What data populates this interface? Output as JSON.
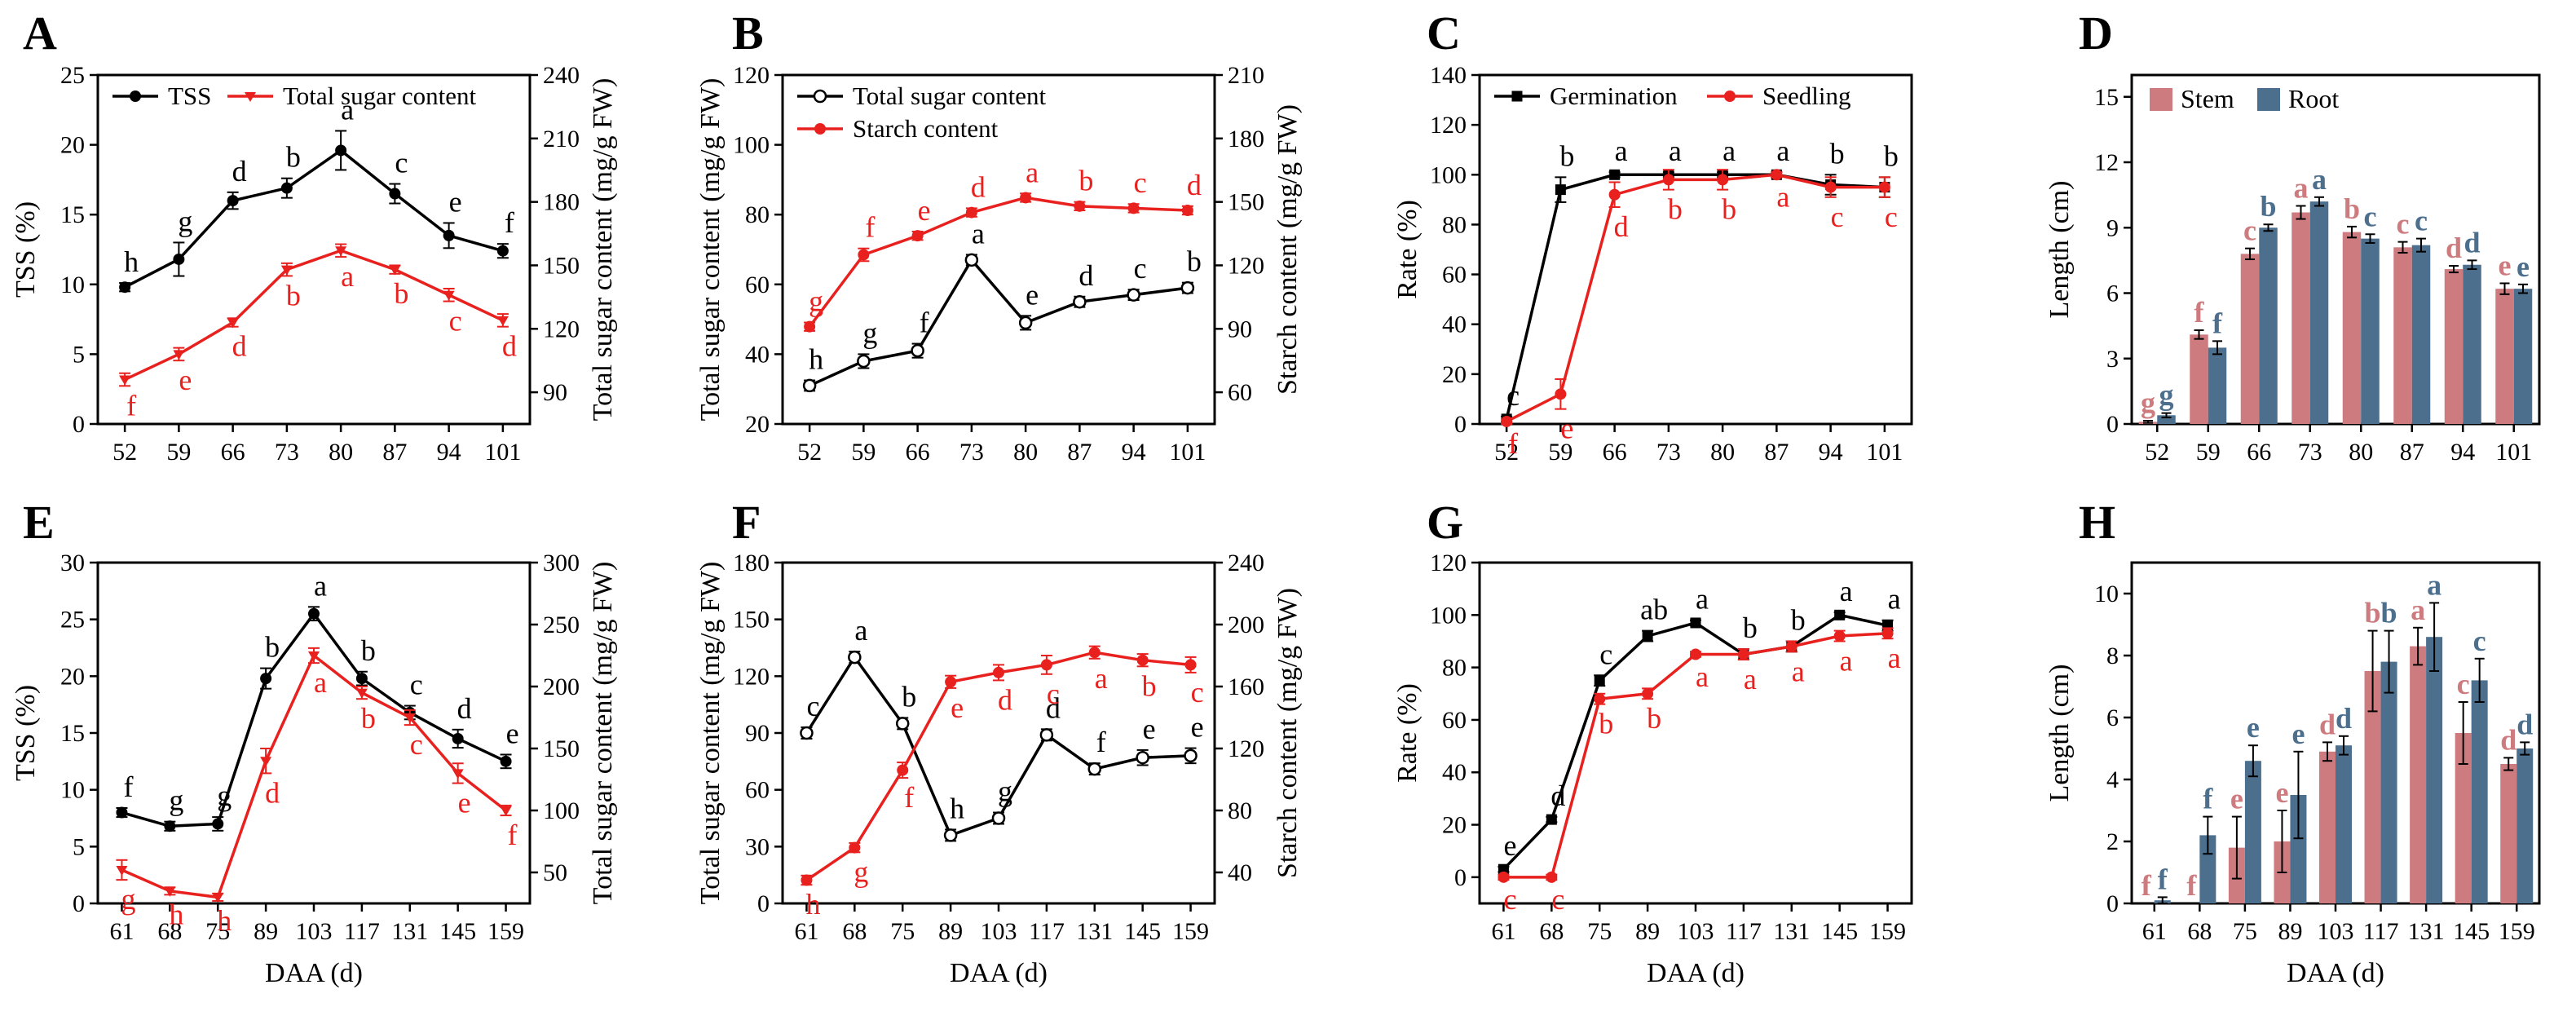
{
  "colors": {
    "black": "#000000",
    "red": "#e8211f",
    "stem": "#cd7b7f",
    "root": "#4c6f8e",
    "axis": "#000000"
  },
  "chart_data": [
    {
      "id": "A",
      "type": "line",
      "xlabel": "",
      "ylabel": "TSS (%)",
      "y2label": "Total sugar content (mg/g FW)",
      "categories": [
        "52",
        "59",
        "66",
        "73",
        "80",
        "87",
        "94",
        "101"
      ],
      "ylim": [
        0,
        25
      ],
      "yticks": [
        "0",
        "5",
        "10",
        "15",
        "20",
        "25"
      ],
      "y2lim": [
        75,
        240
      ],
      "y2ticks": [
        "90",
        "120",
        "150",
        "180",
        "210",
        "240"
      ],
      "legend": "top",
      "series": [
        {
          "name": "TSS",
          "axis": "left",
          "color": "black",
          "marker": "filled",
          "values": [
            9.8,
            11.8,
            16.0,
            16.9,
            19.6,
            16.5,
            13.5,
            12.4
          ],
          "err": [
            0.3,
            1.2,
            0.6,
            0.7,
            1.4,
            0.7,
            0.9,
            0.5
          ],
          "labels": [
            "h",
            "g",
            "d",
            "b",
            "a",
            "c",
            "e",
            "f"
          ]
        },
        {
          "name": "Total sugar content",
          "axis": "right",
          "color": "red",
          "marker": "tri",
          "values": [
            96,
            108,
            123,
            148,
            157,
            148,
            136,
            124
          ],
          "err": [
            3,
            3,
            2,
            3,
            3,
            2,
            3,
            3
          ],
          "labels": [
            "f",
            "e",
            "d",
            "b",
            "a",
            "b",
            "c",
            "d"
          ]
        }
      ]
    },
    {
      "id": "B",
      "type": "line",
      "xlabel": "",
      "ylabel": "Total sugar content (mg/g FW)",
      "y2label": "Starch content (mg/g FW)",
      "categories": [
        "52",
        "59",
        "66",
        "73",
        "80",
        "87",
        "94",
        "101"
      ],
      "ylim": [
        20,
        120
      ],
      "yticks": [
        "20",
        "40",
        "60",
        "80",
        "100",
        "120"
      ],
      "y2lim": [
        45,
        210
      ],
      "y2ticks": [
        "60",
        "90",
        "120",
        "150",
        "180",
        "210"
      ],
      "legend": "top-left",
      "series": [
        {
          "name": "Total sugar content",
          "axis": "left",
          "color": "black",
          "marker": "open",
          "values": [
            31,
            38,
            41,
            67,
            49,
            55,
            57,
            59
          ],
          "err": [
            1.5,
            2,
            2,
            1.5,
            2,
            1.5,
            1.5,
            1.5
          ],
          "labels": [
            "h",
            "g",
            "f",
            "a",
            "e",
            "d",
            "c",
            "b"
          ]
        },
        {
          "name": "Starch content",
          "axis": "right",
          "color": "red",
          "marker": "filled",
          "values": [
            91,
            125,
            134,
            145,
            152,
            148,
            147,
            146
          ],
          "err": [
            2,
            3,
            2,
            2,
            2,
            2,
            2,
            2
          ],
          "labels": [
            "g",
            "f",
            "e",
            "d",
            "a",
            "b",
            "c",
            "d"
          ]
        }
      ]
    },
    {
      "id": "C",
      "type": "line",
      "xlabel": "",
      "ylabel": "Rate (%)",
      "categories": [
        "52",
        "59",
        "66",
        "73",
        "80",
        "87",
        "94",
        "101"
      ],
      "ylim": [
        0,
        140
      ],
      "yticks": [
        "0",
        "20",
        "40",
        "60",
        "80",
        "100",
        "120",
        "140"
      ],
      "legend": "top",
      "series": [
        {
          "name": "Germination",
          "axis": "left",
          "color": "black",
          "marker": "square",
          "values": [
            2,
            94,
            100,
            100,
            100,
            100,
            96,
            95
          ],
          "err": [
            1,
            5,
            1,
            1,
            1,
            1,
            4,
            4
          ],
          "labels": [
            "c",
            "b",
            "a",
            "a",
            "a",
            "a",
            "b",
            "b"
          ]
        },
        {
          "name": "Seedling",
          "axis": "left",
          "color": "red",
          "marker": "filled",
          "values": [
            1,
            12,
            92,
            98,
            98,
            100,
            95,
            95
          ],
          "err": [
            1,
            6,
            5,
            4,
            4,
            1,
            4,
            4
          ],
          "labels": [
            "f",
            "e",
            "d",
            "b",
            "b",
            "a",
            "c",
            "c"
          ]
        }
      ]
    },
    {
      "id": "D",
      "type": "bar",
      "xlabel": "",
      "ylabel": "Length (cm)",
      "categories": [
        "52",
        "59",
        "66",
        "73",
        "80",
        "87",
        "94",
        "101"
      ],
      "ylim": [
        0,
        16
      ],
      "yticks": [
        "0",
        "3",
        "6",
        "9",
        "12",
        "15"
      ],
      "legend": "top-left",
      "series": [
        {
          "name": "Stem",
          "color": "stem",
          "values": [
            0.1,
            4.1,
            7.8,
            9.7,
            8.8,
            8.1,
            7.1,
            6.2
          ],
          "err": [
            0.05,
            0.2,
            0.25,
            0.3,
            0.25,
            0.25,
            0.15,
            0.25
          ],
          "labels": [
            "g",
            "f",
            "c",
            "a",
            "b",
            "c",
            "d",
            "e"
          ]
        },
        {
          "name": "Root",
          "color": "root",
          "values": [
            0.4,
            3.5,
            9.0,
            10.2,
            8.5,
            8.2,
            7.3,
            6.2
          ],
          "err": [
            0.1,
            0.3,
            0.15,
            0.2,
            0.2,
            0.3,
            0.2,
            0.2
          ],
          "labels": [
            "g",
            "f",
            "b",
            "a",
            "c",
            "c",
            "d",
            "e"
          ]
        }
      ]
    },
    {
      "id": "E",
      "type": "line",
      "xlabel": "DAA (d)",
      "ylabel": "TSS (%)",
      "y2label": "Total sugar content (mg/g FW)",
      "categories": [
        "61",
        "68",
        "75",
        "89",
        "103",
        "117",
        "131",
        "145",
        "159"
      ],
      "ylim": [
        0,
        30
      ],
      "yticks": [
        "0",
        "5",
        "10",
        "15",
        "20",
        "25",
        "30"
      ],
      "y2lim": [
        25,
        300
      ],
      "y2ticks": [
        "50",
        "100",
        "150",
        "200",
        "250",
        "300"
      ],
      "legend": "none",
      "series": [
        {
          "name": "TSS",
          "axis": "left",
          "color": "black",
          "marker": "filled",
          "values": [
            8.0,
            6.8,
            7.0,
            19.8,
            25.5,
            19.8,
            16.8,
            14.5,
            12.5
          ],
          "err": [
            0.4,
            0.4,
            0.6,
            0.9,
            0.6,
            0.6,
            0.6,
            0.8,
            0.6
          ],
          "labels": [
            "f",
            "g",
            "g",
            "b",
            "a",
            "b",
            "c",
            "d",
            "e"
          ]
        },
        {
          "name": "Total sugar content",
          "axis": "right",
          "color": "red",
          "marker": "tri",
          "values": [
            52,
            35,
            30,
            140,
            225,
            195,
            175,
            130,
            100
          ],
          "err": [
            8,
            3,
            3,
            10,
            6,
            5,
            6,
            8,
            4
          ],
          "labels": [
            "g",
            "h",
            "h",
            "d",
            "a",
            "b",
            "c",
            "e",
            "f"
          ]
        }
      ]
    },
    {
      "id": "F",
      "type": "line",
      "xlabel": "DAA (d)",
      "ylabel": "Total sugar content (mg/g FW)",
      "y2label": "Starch content (mg/g FW)",
      "categories": [
        "61",
        "68",
        "75",
        "89",
        "103",
        "117",
        "131",
        "145",
        "159"
      ],
      "ylim": [
        0,
        180
      ],
      "yticks": [
        "0",
        "30",
        "60",
        "90",
        "120",
        "150",
        "180"
      ],
      "y2lim": [
        20,
        240
      ],
      "y2ticks": [
        "40",
        "80",
        "120",
        "160",
        "200",
        "240"
      ],
      "legend": "none",
      "series": [
        {
          "name": "Total sugar content",
          "axis": "left",
          "color": "black",
          "marker": "open",
          "values": [
            90,
            130,
            95,
            36,
            45,
            89,
            71,
            77,
            78
          ],
          "err": [
            3,
            3,
            3,
            3,
            3,
            3,
            3,
            4,
            4
          ],
          "labels": [
            "c",
            "a",
            "b",
            "h",
            "g",
            "d",
            "f",
            "e",
            "e"
          ]
        },
        {
          "name": "Starch content",
          "axis": "right",
          "color": "red",
          "marker": "filled",
          "values": [
            35,
            56,
            106,
            163,
            169,
            174,
            182,
            177,
            174
          ],
          "err": [
            3,
            3,
            5,
            4,
            5,
            6,
            4,
            4,
            5
          ],
          "labels": [
            "h",
            "g",
            "f",
            "e",
            "d",
            "c",
            "a",
            "b",
            "c"
          ]
        }
      ]
    },
    {
      "id": "G",
      "type": "line",
      "xlabel": "DAA (d)",
      "ylabel": "Rate (%)",
      "categories": [
        "61",
        "68",
        "75",
        "89",
        "103",
        "117",
        "131",
        "145",
        "159"
      ],
      "ylim": [
        -10,
        120
      ],
      "yticks": [
        "0",
        "20",
        "40",
        "60",
        "80",
        "100",
        "120"
      ],
      "legend": "none",
      "series": [
        {
          "name": "Germination",
          "axis": "left",
          "color": "black",
          "marker": "square",
          "values": [
            3,
            22,
            75,
            92,
            97,
            85,
            88,
            100,
            96
          ],
          "err": [
            1,
            1,
            2,
            2,
            1,
            2,
            2,
            1,
            2
          ],
          "labels": [
            "e",
            "d",
            "c",
            "ab",
            "a",
            "b",
            "b",
            "a",
            "a"
          ]
        },
        {
          "name": "Seedling",
          "axis": "left",
          "color": "red",
          "marker": "filled",
          "values": [
            0,
            0,
            68,
            70,
            85,
            85,
            88,
            92,
            93
          ],
          "err": [
            1,
            1,
            2,
            2,
            1,
            2,
            2,
            2,
            2
          ],
          "labels": [
            "c",
            "c",
            "b",
            "b",
            "a",
            "a",
            "a",
            "a",
            "a"
          ]
        }
      ]
    },
    {
      "id": "H",
      "type": "bar",
      "xlabel": "DAA (d)",
      "ylabel": "Length (cm)",
      "categories": [
        "61",
        "68",
        "75",
        "89",
        "103",
        "117",
        "131",
        "145",
        "159"
      ],
      "ylim": [
        0,
        11
      ],
      "yticks": [
        "0",
        "2",
        "4",
        "6",
        "8",
        "10"
      ],
      "legend": "none",
      "series": [
        {
          "name": "Stem",
          "color": "stem",
          "values": [
            0.0,
            0.0,
            1.8,
            2.0,
            4.9,
            7.5,
            8.3,
            5.5,
            4.5
          ],
          "err": [
            0.0,
            0.0,
            1.0,
            1.0,
            0.3,
            1.3,
            0.6,
            1.0,
            0.2
          ],
          "labels": [
            "f",
            "f",
            "e",
            "e",
            "d",
            "b",
            "a",
            "c",
            "d"
          ]
        },
        {
          "name": "Root",
          "color": "root",
          "values": [
            0.1,
            2.2,
            4.6,
            3.5,
            5.1,
            7.8,
            8.6,
            7.2,
            5.0
          ],
          "err": [
            0.1,
            0.6,
            0.5,
            1.4,
            0.3,
            1.0,
            1.1,
            0.7,
            0.2
          ],
          "labels": [
            "f",
            "f",
            "e",
            "e",
            "d",
            "b",
            "a",
            "c",
            "d"
          ]
        }
      ]
    }
  ]
}
